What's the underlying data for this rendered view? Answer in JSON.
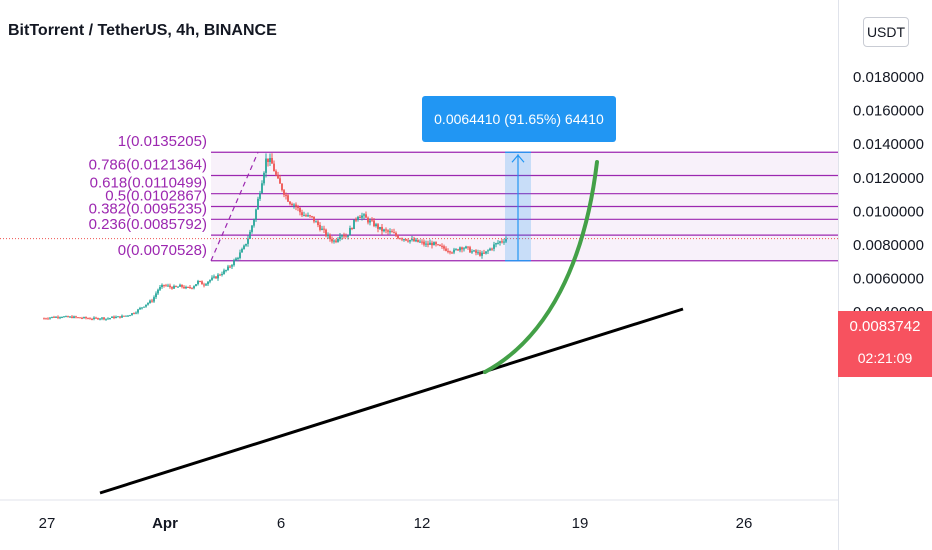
{
  "header": {
    "title": "BitTorrent / TetherUS, 4h, BINANCE"
  },
  "currency": "USDT",
  "measure": {
    "label": "0.0064410 (91.65%) 64410"
  },
  "price_tag": {
    "price": "0.0083742",
    "countdown": "02:21:09",
    "color": "#f7525f"
  },
  "colors": {
    "up": "#26a69a",
    "down": "#ef5350",
    "fib": "#9c27b0",
    "fib_fill": "#f3e5f5",
    "measure": "#2196f3",
    "trend": "#000000",
    "curve": "#43a047"
  },
  "chart_data": {
    "type": "candlestick",
    "title": "BitTorrent / TetherUS, 4h, BINANCE",
    "ylim": [
      0.0033,
      0.0185
    ],
    "y_ticks": [
      "0.0180000",
      "0.0160000",
      "0.0140000",
      "0.0120000",
      "0.0100000",
      "0.0080000",
      "0.0060000",
      "0.0040000"
    ],
    "x_ticks": [
      "27",
      "Apr",
      "6",
      "12",
      "19",
      "26"
    ],
    "fib_levels": [
      {
        "label": "1(0.0135205)",
        "value": 0.0135205
      },
      {
        "label": "0.786(0.0121364)",
        "value": 0.0121364
      },
      {
        "label": "0.618(0.0110499)",
        "value": 0.0110499
      },
      {
        "label": "0.5(0.0102867)",
        "value": 0.0102867
      },
      {
        "label": "0.382(0.0095235)",
        "value": 0.0095235
      },
      {
        "label": "0.236(0.0085792)",
        "value": 0.0085792
      },
      {
        "label": "0(0.0070528)",
        "value": 0.0070528
      }
    ],
    "last_price": 0.0083742,
    "price_path": [
      0.00362,
      0.00368,
      0.0037,
      0.00375,
      0.00368,
      0.0037,
      0.00366,
      0.00364,
      0.00362,
      0.0036,
      0.00365,
      0.0036,
      0.00368,
      0.0037,
      0.00375,
      0.00385,
      0.004,
      0.00425,
      0.0045,
      0.0047,
      0.00535,
      0.0056,
      0.0055,
      0.00545,
      0.00555,
      0.0054,
      0.0055,
      0.0058,
      0.00565,
      0.0059,
      0.00605,
      0.0063,
      0.0065,
      0.0069,
      0.0073,
      0.0078,
      0.0086,
      0.0098,
      0.0115,
      0.0132,
      0.0128,
      0.0118,
      0.0112,
      0.0106,
      0.0104,
      0.0099,
      0.0097,
      0.0096,
      0.0092,
      0.0088,
      0.0084,
      0.0082,
      0.0087,
      0.0085,
      0.0091,
      0.0098,
      0.0097,
      0.0094,
      0.0092,
      0.0089,
      0.0088,
      0.0087,
      0.0085,
      0.0084,
      0.0083,
      0.0082,
      0.00815,
      0.008,
      0.0081,
      0.0079,
      0.0078,
      0.0077,
      0.0076,
      0.0079,
      0.0078,
      0.0076,
      0.0075,
      0.0074,
      0.0077,
      0.008,
      0.0082,
      0.0083742
    ]
  }
}
